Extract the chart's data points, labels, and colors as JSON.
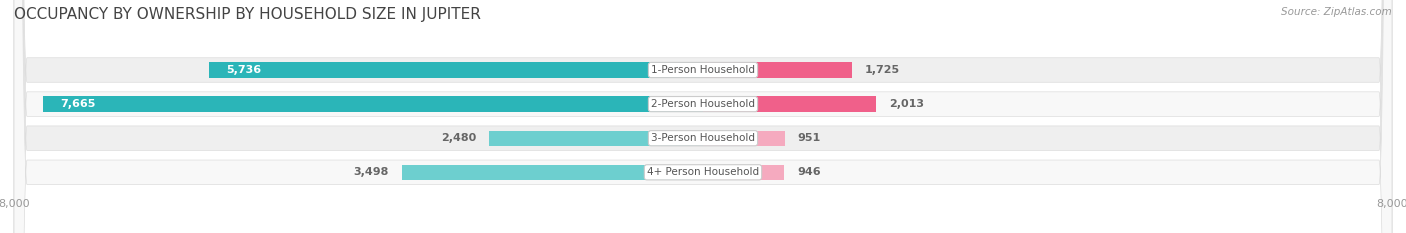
{
  "title": "OCCUPANCY BY OWNERSHIP BY HOUSEHOLD SIZE IN JUPITER",
  "source": "Source: ZipAtlas.com",
  "categories": [
    "1-Person Household",
    "2-Person Household",
    "3-Person Household",
    "4+ Person Household"
  ],
  "owner_values": [
    5736,
    7665,
    2480,
    3498
  ],
  "renter_values": [
    1725,
    2013,
    951,
    946
  ],
  "owner_color_dark": "#2BB5B8",
  "owner_color_light": "#6DCFCF",
  "renter_color_dark": "#F0608A",
  "renter_color_light": "#F5AABF",
  "label_white": "#FFFFFF",
  "label_dark": "#666666",
  "axis_max": 8000,
  "bg_color": "#FFFFFF",
  "row_bg_even": "#EFEFEF",
  "row_bg_odd": "#F8F8F8",
  "center_label_color": "#555555",
  "axis_label_color": "#999999",
  "title_color": "#444444",
  "title_fontsize": 11,
  "bar_label_fontsize": 8,
  "category_fontsize": 7.5,
  "axis_tick_fontsize": 8
}
